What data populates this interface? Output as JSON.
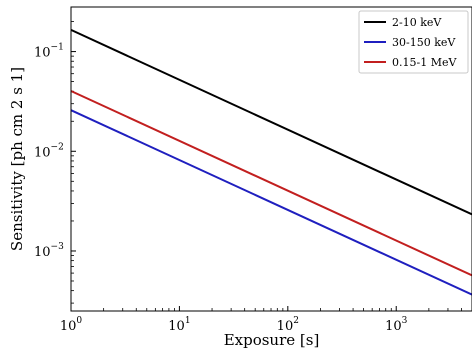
{
  "chart_data": {
    "type": "line",
    "title": "",
    "xlabel": "Exposure [s]",
    "ylabel": "Sensitivity [ph cm  2 s  1]",
    "xscale": "log",
    "yscale": "log",
    "xlim": [
      1,
      5000
    ],
    "ylim": [
      0.00025,
      0.28
    ],
    "x_ticks": [
      {
        "value": 1,
        "base": "10",
        "exp": "0"
      },
      {
        "value": 10,
        "base": "10",
        "exp": "1"
      },
      {
        "value": 100,
        "base": "10",
        "exp": "2"
      },
      {
        "value": 1000,
        "base": "10",
        "exp": "3"
      }
    ],
    "y_ticks": [
      {
        "value": 0.1,
        "base": "10",
        "exp": "−1"
      },
      {
        "value": 0.01,
        "base": "10",
        "exp": "−2"
      },
      {
        "value": 0.001,
        "base": "10",
        "exp": "−3"
      }
    ],
    "grid": false,
    "legend_position": "top-right",
    "series": [
      {
        "name": "2-10 keV",
        "color": "#000000",
        "x": [
          1,
          5000
        ],
        "y": [
          0.165,
          0.00233
        ]
      },
      {
        "name": "30-150 keV",
        "color": "#1f1fbf",
        "x": [
          1,
          5000
        ],
        "y": [
          0.0258,
          0.000365
        ]
      },
      {
        "name": "0.15-1 MeV",
        "color": "#c21f1f",
        "x": [
          1,
          5000
        ],
        "y": [
          0.0402,
          0.000569
        ]
      }
    ]
  }
}
